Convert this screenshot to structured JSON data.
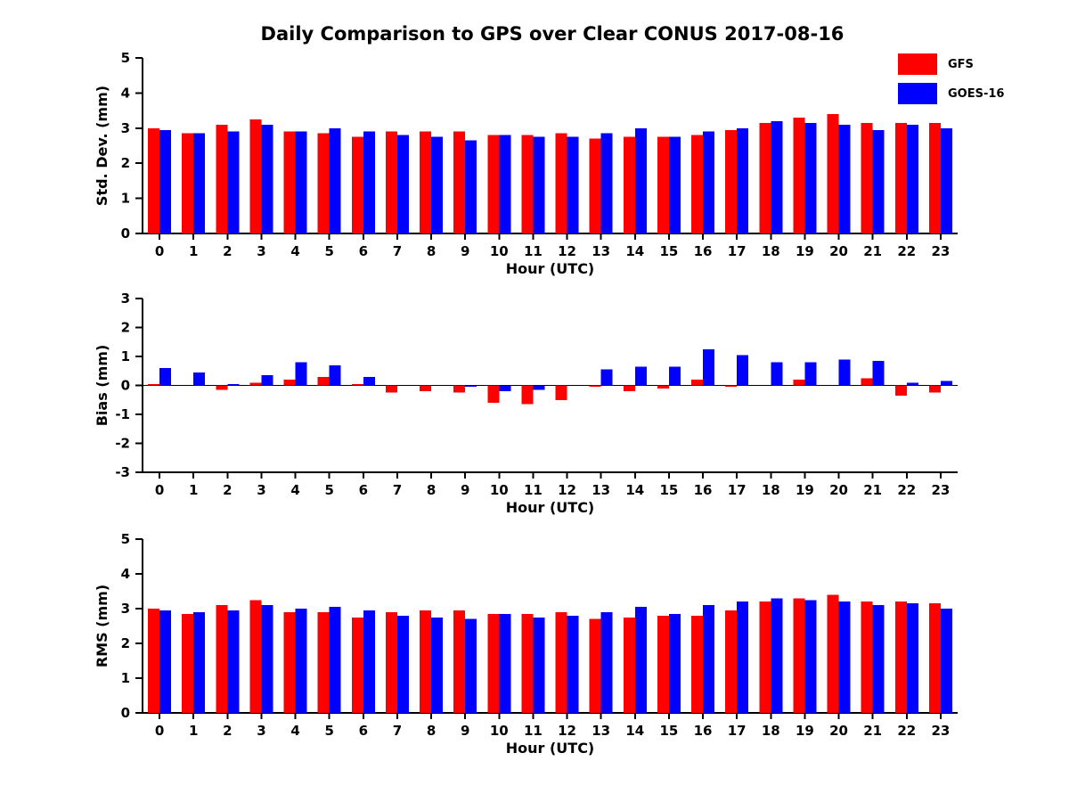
{
  "title": "Daily Comparison to GPS over Clear CONUS 2017-08-16",
  "legend": [
    {
      "label": "GFS",
      "color": "#ff0000"
    },
    {
      "label": "GOES-16",
      "color": "#0000ff"
    }
  ],
  "colors": {
    "gfs": "#ff0000",
    "goes16": "#0000ff",
    "axis": "#000000"
  },
  "chart_data": [
    {
      "type": "bar",
      "title": "",
      "xlabel": "Hour (UTC)",
      "ylabel": "Std. Dev. (mm)",
      "ylim": [
        0,
        5
      ],
      "yticks": [
        0,
        1,
        2,
        3,
        4,
        5
      ],
      "categories": [
        "0",
        "1",
        "2",
        "3",
        "4",
        "5",
        "6",
        "7",
        "8",
        "9",
        "10",
        "11",
        "12",
        "13",
        "14",
        "15",
        "16",
        "17",
        "18",
        "19",
        "20",
        "21",
        "22",
        "23"
      ],
      "series": [
        {
          "name": "GFS",
          "color": "#ff0000",
          "values": [
            3.0,
            2.85,
            3.1,
            3.25,
            2.9,
            2.85,
            2.75,
            2.9,
            2.9,
            2.9,
            2.8,
            2.8,
            2.85,
            2.7,
            2.75,
            2.75,
            2.8,
            2.95,
            3.15,
            3.3,
            3.4,
            3.15,
            3.15,
            3.15
          ]
        },
        {
          "name": "GOES-16",
          "color": "#0000ff",
          "values": [
            2.95,
            2.85,
            2.9,
            3.1,
            2.9,
            3.0,
            2.9,
            2.8,
            2.75,
            2.65,
            2.8,
            2.75,
            2.75,
            2.85,
            3.0,
            2.75,
            2.9,
            3.0,
            3.2,
            3.15,
            3.1,
            2.95,
            3.1,
            3.0
          ]
        }
      ]
    },
    {
      "type": "bar",
      "title": "",
      "xlabel": "Hour (UTC)",
      "ylabel": "Bias (mm)",
      "ylim": [
        -3,
        3
      ],
      "yticks": [
        -3,
        -2,
        -1,
        0,
        1,
        2,
        3
      ],
      "categories": [
        "0",
        "1",
        "2",
        "3",
        "4",
        "5",
        "6",
        "7",
        "8",
        "9",
        "10",
        "11",
        "12",
        "13",
        "14",
        "15",
        "16",
        "17",
        "18",
        "19",
        "20",
        "21",
        "22",
        "23"
      ],
      "series": [
        {
          "name": "GFS",
          "color": "#ff0000",
          "values": [
            0.05,
            0.0,
            -0.15,
            0.1,
            0.2,
            0.3,
            0.05,
            -0.25,
            -0.2,
            -0.25,
            -0.6,
            -0.65,
            -0.5,
            -0.05,
            -0.2,
            -0.1,
            0.2,
            -0.05,
            0.0,
            0.2,
            0.0,
            0.25,
            -0.35,
            -0.25
          ]
        },
        {
          "name": "GOES-16",
          "color": "#0000ff",
          "values": [
            0.6,
            0.45,
            0.05,
            0.35,
            0.8,
            0.7,
            0.3,
            0.0,
            0.0,
            -0.05,
            -0.2,
            -0.15,
            0.0,
            0.55,
            0.65,
            0.65,
            1.25,
            1.05,
            0.8,
            0.8,
            0.9,
            0.85,
            0.1,
            0.15
          ]
        }
      ]
    },
    {
      "type": "bar",
      "title": "",
      "xlabel": "Hour (UTC)",
      "ylabel": "RMS (mm)",
      "ylim": [
        0,
        5
      ],
      "yticks": [
        0,
        1,
        2,
        3,
        4,
        5
      ],
      "categories": [
        "0",
        "1",
        "2",
        "3",
        "4",
        "5",
        "6",
        "7",
        "8",
        "9",
        "10",
        "11",
        "12",
        "13",
        "14",
        "15",
        "16",
        "17",
        "18",
        "19",
        "20",
        "21",
        "22",
        "23"
      ],
      "series": [
        {
          "name": "GFS",
          "color": "#ff0000",
          "values": [
            3.0,
            2.85,
            3.1,
            3.25,
            2.9,
            2.9,
            2.75,
            2.9,
            2.95,
            2.95,
            2.85,
            2.85,
            2.9,
            2.7,
            2.75,
            2.8,
            2.8,
            2.95,
            3.2,
            3.3,
            3.4,
            3.2,
            3.2,
            3.15
          ]
        },
        {
          "name": "GOES-16",
          "color": "#0000ff",
          "values": [
            2.95,
            2.9,
            2.95,
            3.1,
            3.0,
            3.05,
            2.95,
            2.8,
            2.75,
            2.7,
            2.85,
            2.75,
            2.8,
            2.9,
            3.05,
            2.85,
            3.1,
            3.2,
            3.3,
            3.25,
            3.2,
            3.1,
            3.15,
            3.0
          ]
        }
      ]
    }
  ]
}
